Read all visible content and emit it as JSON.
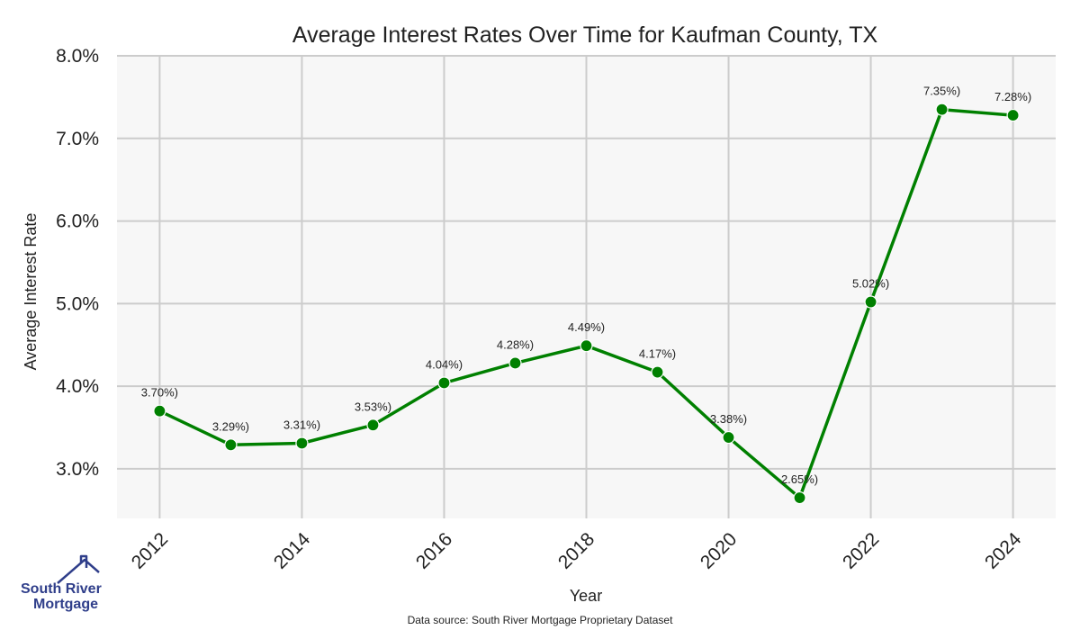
{
  "logo": {
    "line1": "South River",
    "line2": "Mortgage",
    "color": "#2f3e8a"
  },
  "source_note": "Data source: South River Mortgage Proprietary Dataset",
  "chart_data": {
    "type": "line",
    "title": "Average Interest Rates Over Time for Kaufman County, TX",
    "xlabel": "Year",
    "ylabel": "Average Interest Rate",
    "x": [
      2012,
      2013,
      2014,
      2015,
      2016,
      2017,
      2018,
      2019,
      2020,
      2021,
      2022,
      2023,
      2024
    ],
    "values": [
      3.7,
      3.29,
      3.31,
      3.53,
      4.04,
      4.28,
      4.49,
      4.17,
      3.38,
      2.65,
      5.02,
      7.35,
      7.28
    ],
    "data_labels": [
      "3.70%)",
      "3.29%)",
      "3.31%)",
      "3.53%)",
      "4.04%)",
      "4.28%)",
      "4.49%)",
      "4.17%)",
      "3.38%)",
      "2.65%)",
      "5.02%)",
      "7.35%)",
      "7.28%)"
    ],
    "xticks": [
      2012,
      2014,
      2016,
      2018,
      2020,
      2022,
      2024
    ],
    "yticks": [
      3.0,
      4.0,
      5.0,
      6.0,
      7.0,
      8.0
    ],
    "ytick_labels": [
      "3.0%",
      "4.0%",
      "5.0%",
      "6.0%",
      "7.0%",
      "8.0%"
    ],
    "ylim": [
      2.4,
      8.0
    ],
    "xlim": [
      2011.4,
      2024.6
    ],
    "grid": true,
    "line_color": "#008000",
    "plot_background": "#f7f7f7",
    "grid_color": "#cccccc"
  }
}
